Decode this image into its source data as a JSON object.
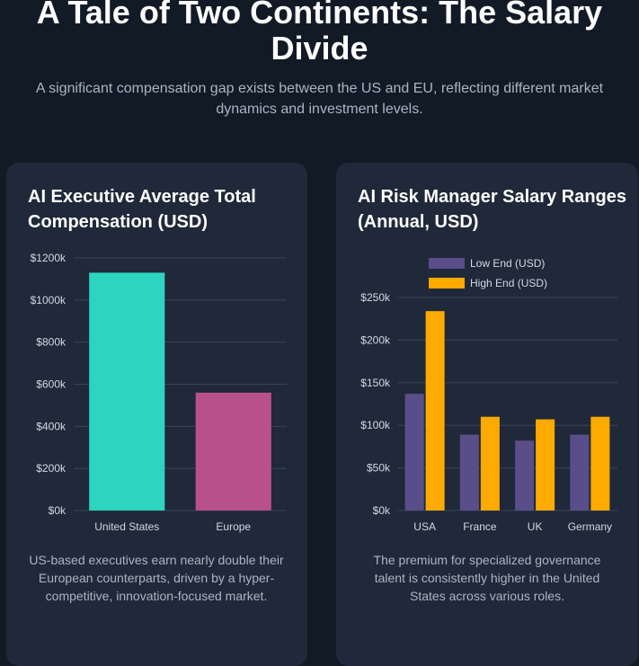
{
  "header": {
    "title": "A Tale of Two Continents: The Salary Divide",
    "subtitle": "A significant compensation gap exists between the US and EU, reflecting different market dynamics and investment levels."
  },
  "cards": [
    {
      "title": "AI Executive Average Total Compensation (USD)",
      "description": "US-based executives earn nearly double their European counterparts, driven by a hyper-competitive, innovation-focused market."
    },
    {
      "title": "AI Risk Manager Salary Ranges (Annual, USD)",
      "description": "The premium for specialized governance talent is consistently higher in the United States across various roles."
    }
  ],
  "chart_data": [
    {
      "type": "bar",
      "categories": [
        "United States",
        "Europe"
      ],
      "values": [
        1130000,
        560000
      ],
      "colors": [
        "#2dd4bf",
        "#b8508c"
      ],
      "ylim": [
        0,
        1200000
      ],
      "yticks": [
        {
          "value": 0,
          "label": "$0k"
        },
        {
          "value": 200000,
          "label": "$200k"
        },
        {
          "value": 400000,
          "label": "$400k"
        },
        {
          "value": 600000,
          "label": "$600k"
        },
        {
          "value": 800000,
          "label": "$800k"
        },
        {
          "value": 1000000,
          "label": "$1000k"
        },
        {
          "value": 1200000,
          "label": "$1200k"
        }
      ],
      "grid": true
    },
    {
      "type": "bar",
      "categories": [
        "USA",
        "France",
        "UK",
        "Germany"
      ],
      "series": [
        {
          "name": "Low End (USD)",
          "values": [
            137000,
            89000,
            82000,
            89000
          ],
          "color": "#5a4e8a"
        },
        {
          "name": "High End (USD)",
          "values": [
            234000,
            110000,
            107000,
            110000
          ],
          "color": "#ffaa00"
        }
      ],
      "ylim": [
        0,
        250000
      ],
      "yticks": [
        {
          "value": 0,
          "label": "$0k"
        },
        {
          "value": 50000,
          "label": "$50k"
        },
        {
          "value": 100000,
          "label": "$100k"
        },
        {
          "value": 150000,
          "label": "$150k"
        },
        {
          "value": 200000,
          "label": "$200k"
        },
        {
          "value": 250000,
          "label": "$250k"
        }
      ],
      "legend": "top",
      "grid": true
    }
  ]
}
